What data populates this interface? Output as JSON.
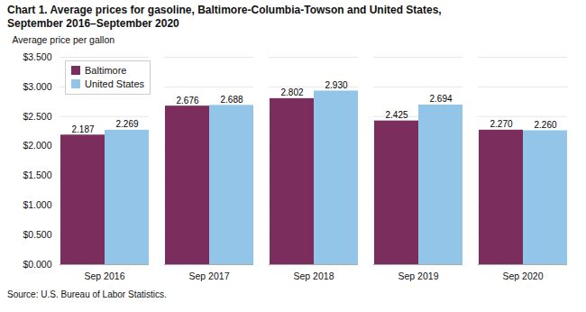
{
  "chart_data": {
    "type": "bar",
    "title": "Chart 1. Average prices for gasoline, Baltimore-Columbia-Towson and United States,",
    "subtitle": "September 2016–September 2020",
    "y_label": "Average price per gallon",
    "source": "Source: U.S. Bureau of Labor Statistics.",
    "categories": [
      "Sep 2016",
      "Sep 2017",
      "Sep 2018",
      "Sep 2019",
      "Sep 2020"
    ],
    "series": [
      {
        "name": "Baltimore",
        "color": "#7B2D5E",
        "values": [
          2.187,
          2.676,
          2.802,
          2.425,
          2.27
        ],
        "value_labels": [
          "2.187",
          "2.676",
          "2.802",
          "2.425",
          "2.270"
        ]
      },
      {
        "name": "United States",
        "color": "#92C5E8",
        "values": [
          2.269,
          2.688,
          2.93,
          2.694,
          2.26
        ],
        "value_labels": [
          "2.269",
          "2.688",
          "2.930",
          "2.694",
          "2.260"
        ]
      }
    ],
    "ylim": [
      0,
      3.5
    ],
    "yticks": [
      {
        "value": 0.0,
        "label": "$0.000"
      },
      {
        "value": 0.5,
        "label": "$0.500"
      },
      {
        "value": 1.0,
        "label": "$1.000"
      },
      {
        "value": 1.5,
        "label": "$1.500"
      },
      {
        "value": 2.0,
        "label": "$2.000"
      },
      {
        "value": 2.5,
        "label": "$2.500"
      },
      {
        "value": 3.0,
        "label": "$3.000"
      },
      {
        "value": 3.5,
        "label": "$3.500"
      }
    ],
    "grid": true,
    "legend": "upper left",
    "data_labels": true
  }
}
